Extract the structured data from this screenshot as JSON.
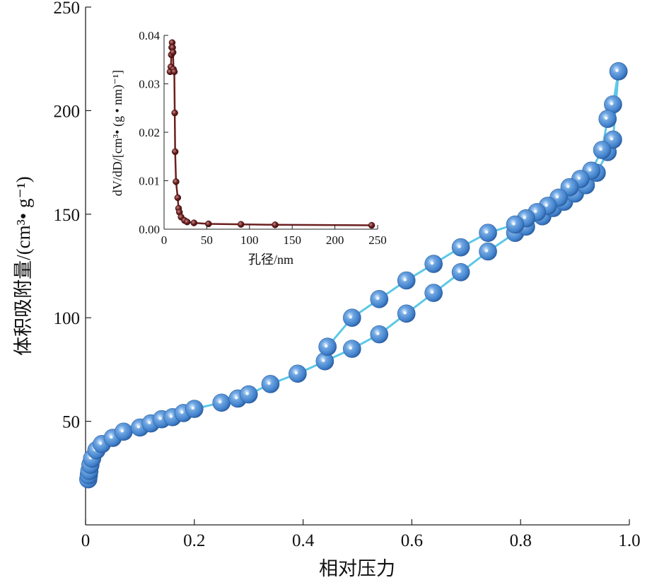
{
  "chart_data": [
    {
      "type": "line",
      "title": "",
      "xlabel": "相对压力",
      "ylabel": "体积吸附量/(cm³• g⁻¹)",
      "xlim": [
        0,
        1.0
      ],
      "ylim": [
        0,
        250
      ],
      "x_ticks": [
        "0",
        "0.2",
        "0.4",
        "0.6",
        "0.8",
        "1.0"
      ],
      "y_ticks": [
        "50",
        "100",
        "150",
        "200",
        "250"
      ],
      "grid": false,
      "legend": "none",
      "marker": "sphere",
      "colors": {
        "marker": "#3e7fcb",
        "line": "#5ec8e6"
      },
      "series": [
        {
          "x": [
            0.005,
            0.006,
            0.007,
            0.009,
            0.012,
            0.02,
            0.03,
            0.05,
            0.07,
            0.1,
            0.12,
            0.14,
            0.16,
            0.18,
            0.2,
            0.25,
            0.28,
            0.3,
            0.34,
            0.39,
            0.44,
            0.49,
            0.54,
            0.59,
            0.64,
            0.69,
            0.74,
            0.79,
            0.81,
            0.84,
            0.86,
            0.88,
            0.9,
            0.92,
            0.94,
            0.96,
            0.97,
            0.98
          ],
          "y": [
            22,
            24,
            26,
            29,
            32,
            36,
            39,
            42,
            45,
            47,
            49,
            51,
            52,
            54,
            56,
            59,
            61,
            63,
            68,
            73,
            79,
            85,
            92,
            102,
            112,
            122,
            132,
            141,
            144,
            149,
            153,
            156,
            160,
            164,
            170,
            180,
            186,
            219
          ]
        },
        {
          "x": [
            0.98,
            0.97,
            0.96,
            0.95,
            0.93,
            0.91,
            0.89,
            0.87,
            0.85,
            0.83,
            0.81,
            0.79,
            0.74,
            0.69,
            0.64,
            0.59,
            0.54,
            0.49,
            0.445
          ],
          "y": [
            219,
            203,
            196,
            181,
            171,
            167,
            163,
            158,
            154,
            151,
            148,
            145,
            141,
            134,
            126,
            118,
            109,
            100,
            86
          ]
        }
      ]
    },
    {
      "type": "line",
      "title": "",
      "xlabel": "孔径/nm",
      "ylabel": "dV/dD/[cm³• (g • nm)⁻¹]",
      "xlim": [
        0,
        250
      ],
      "ylim": [
        0,
        0.04
      ],
      "x_ticks": [
        "0",
        "50",
        "100",
        "150",
        "200",
        "250"
      ],
      "y_ticks": [
        "0.00",
        "0.01",
        "0.02",
        "0.03",
        "0.04"
      ],
      "grid": false,
      "legend": "none",
      "marker": "circle",
      "colors": {
        "marker": "#6b1f1f",
        "line": "#6b1f1f"
      },
      "series": [
        {
          "x": [
            7,
            8,
            8.5,
            9,
            9.5,
            10,
            10.5,
            11,
            12,
            12.5,
            13,
            14,
            16,
            17,
            18,
            20,
            24,
            27,
            35,
            52,
            90,
            130,
            243
          ],
          "y": [
            0.0325,
            0.0335,
            0.036,
            0.0375,
            0.0385,
            0.0375,
            0.0365,
            0.033,
            0.0325,
            0.024,
            0.016,
            0.0098,
            0.0065,
            0.0043,
            0.0035,
            0.0025,
            0.0018,
            0.0015,
            0.0013,
            0.0011,
            0.001,
            0.0009,
            0.0008
          ]
        }
      ]
    }
  ]
}
